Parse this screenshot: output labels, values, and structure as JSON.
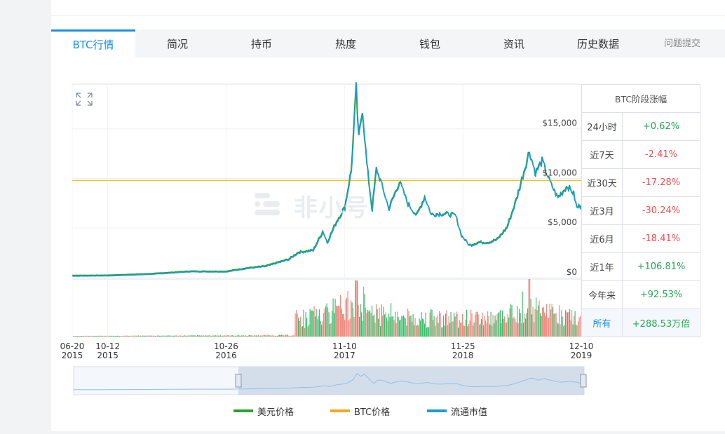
{
  "tabs": [
    {
      "label": "BTC行情",
      "active": true
    },
    {
      "label": "简况"
    },
    {
      "label": "持币"
    },
    {
      "label": "热度"
    },
    {
      "label": "钱包"
    },
    {
      "label": "资讯"
    },
    {
      "label": "历史数据"
    },
    {
      "label": "问题提交"
    }
  ],
  "watermark": "非小号",
  "colors": {
    "accent": "#1890e6",
    "usd_line": "#2ca02c",
    "btc_line": "#f5a623",
    "mcap_line": "#1a9bdc",
    "up": "#22a852",
    "down": "#ef4f4f"
  },
  "range_table": {
    "title": "BTC阶段涨幅",
    "rows": [
      {
        "label": "24小时",
        "value": "+0.62%",
        "dir": "up"
      },
      {
        "label": "近7天",
        "value": "-2.41%",
        "dir": "down"
      },
      {
        "label": "近30天",
        "value": "-17.28%",
        "dir": "down"
      },
      {
        "label": "近3月",
        "value": "-30.24%",
        "dir": "down"
      },
      {
        "label": "近6月",
        "value": "-18.41%",
        "dir": "down"
      },
      {
        "label": "近1年",
        "value": "+106.81%",
        "dir": "up"
      },
      {
        "label": "今年来",
        "value": "+92.53%",
        "dir": "up"
      },
      {
        "label": "所有",
        "value": "+288.53万倍",
        "dir": "up"
      }
    ]
  },
  "chart_data": {
    "type": "line",
    "title": "",
    "xlabel": "",
    "ylabel": "",
    "y_ticks": [
      "$0",
      "$5,000",
      "$10,000",
      "$15,000"
    ],
    "ylim": [
      0,
      19500
    ],
    "x_ticks": [
      {
        "date": "06-20",
        "year": "2015"
      },
      {
        "date": "10-12",
        "year": "2015"
      },
      {
        "date": "10-26",
        "year": "2016"
      },
      {
        "date": "11-10",
        "year": "2017"
      },
      {
        "date": "11-25",
        "year": "2018"
      },
      {
        "date": "12-10",
        "year": "2019"
      }
    ],
    "x_range": [
      "2015-06-20",
      "2019-12-10"
    ],
    "reference_line": 9800,
    "series": [
      {
        "name": "美元价格",
        "color": "#2ca02c",
        "x": [
          "2015-06-20",
          "2015-10-12",
          "2016-03-01",
          "2016-07-01",
          "2016-10-26",
          "2017-01-01",
          "2017-03-01",
          "2017-05-15",
          "2017-06-15",
          "2017-08-01",
          "2017-09-01",
          "2017-09-15",
          "2017-10-15",
          "2017-11-10",
          "2017-12-01",
          "2017-12-17",
          "2017-12-25",
          "2018-01-06",
          "2018-01-20",
          "2018-02-06",
          "2018-02-20",
          "2018-03-05",
          "2018-04-01",
          "2018-04-15",
          "2018-05-05",
          "2018-06-01",
          "2018-06-29",
          "2018-07-25",
          "2018-08-15",
          "2018-09-15",
          "2018-10-15",
          "2018-11-01",
          "2018-11-20",
          "2018-12-15",
          "2019-01-15",
          "2019-02-15",
          "2019-03-15",
          "2019-04-15",
          "2019-05-15",
          "2019-06-26",
          "2019-07-15",
          "2019-08-06",
          "2019-09-01",
          "2019-09-25",
          "2019-10-26",
          "2019-11-15",
          "2019-11-25",
          "2019-12-10"
        ],
        "values": [
          240,
          260,
          420,
          670,
          660,
          1000,
          1200,
          1900,
          2600,
          2800,
          4700,
          3600,
          5700,
          7100,
          10800,
          19100,
          14000,
          17100,
          11500,
          6900,
          11000,
          9800,
          7000,
          8100,
          9700,
          7500,
          6300,
          8200,
          6400,
          6500,
          6400,
          6300,
          4300,
          3300,
          3600,
          3600,
          3900,
          5100,
          7900,
          12800,
          10600,
          11800,
          9600,
          8100,
          9300,
          8500,
          7100,
          7300
        ]
      },
      {
        "name": "BTC价格",
        "color": "#f5a623"
      },
      {
        "name": "流通市值",
        "color": "#1a9bdc"
      }
    ],
    "volume": {
      "peak_date": "2017-12-17",
      "secondary_peak_date": "2019-06-26"
    }
  }
}
